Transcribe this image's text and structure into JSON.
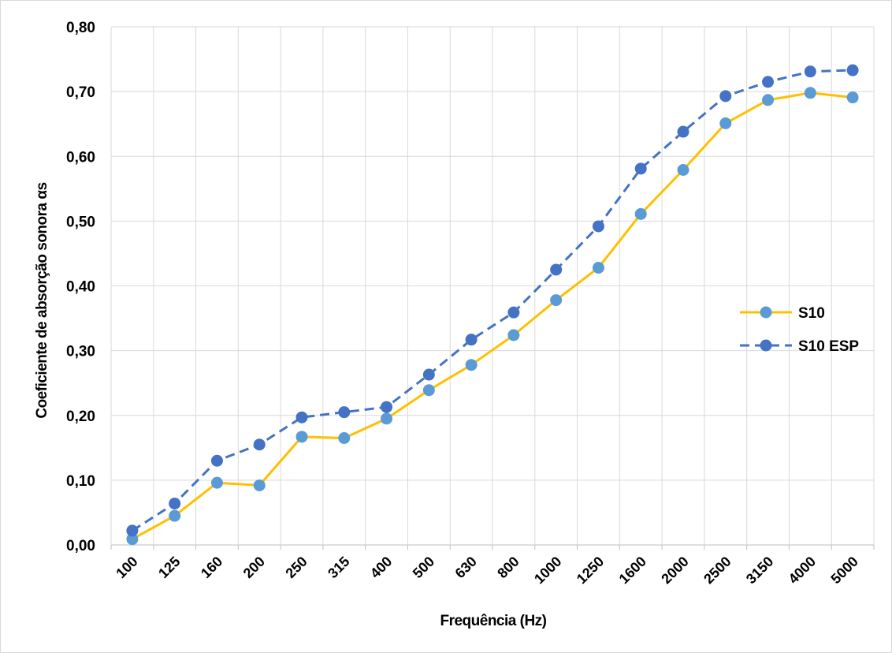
{
  "chart_data": {
    "type": "line",
    "xlabel": "Frequência (Hz)",
    "ylabel": "Coeficiente de absorção sonora αs",
    "categories": [
      "100",
      "125",
      "160",
      "200",
      "250",
      "315",
      "400",
      "500",
      "630",
      "800",
      "1000",
      "1250",
      "1600",
      "2000",
      "2500",
      "3150",
      "4000",
      "5000"
    ],
    "ylim": [
      0,
      0.8
    ],
    "yticks": [
      "0,00",
      "0,10",
      "0,20",
      "0,30",
      "0,40",
      "0,50",
      "0,60",
      "0,70",
      "0,80"
    ],
    "grid": true,
    "legend_position": "right",
    "series": [
      {
        "name": "S10",
        "line_color": "#FFC000",
        "marker_color": "#5B9BD5",
        "dash": false,
        "values": [
          0.009,
          0.045,
          0.096,
          0.092,
          0.167,
          0.165,
          0.195,
          0.239,
          0.278,
          0.324,
          0.378,
          0.428,
          0.511,
          0.579,
          0.651,
          0.687,
          0.698,
          0.691
        ]
      },
      {
        "name": "S10 ESP",
        "line_color": "#4472C4",
        "marker_color": "#4472C4",
        "dash": true,
        "values": [
          0.022,
          0.064,
          0.13,
          0.155,
          0.197,
          0.205,
          0.213,
          0.263,
          0.317,
          0.359,
          0.425,
          0.492,
          0.581,
          0.638,
          0.693,
          0.715,
          0.731,
          0.733
        ]
      }
    ]
  }
}
